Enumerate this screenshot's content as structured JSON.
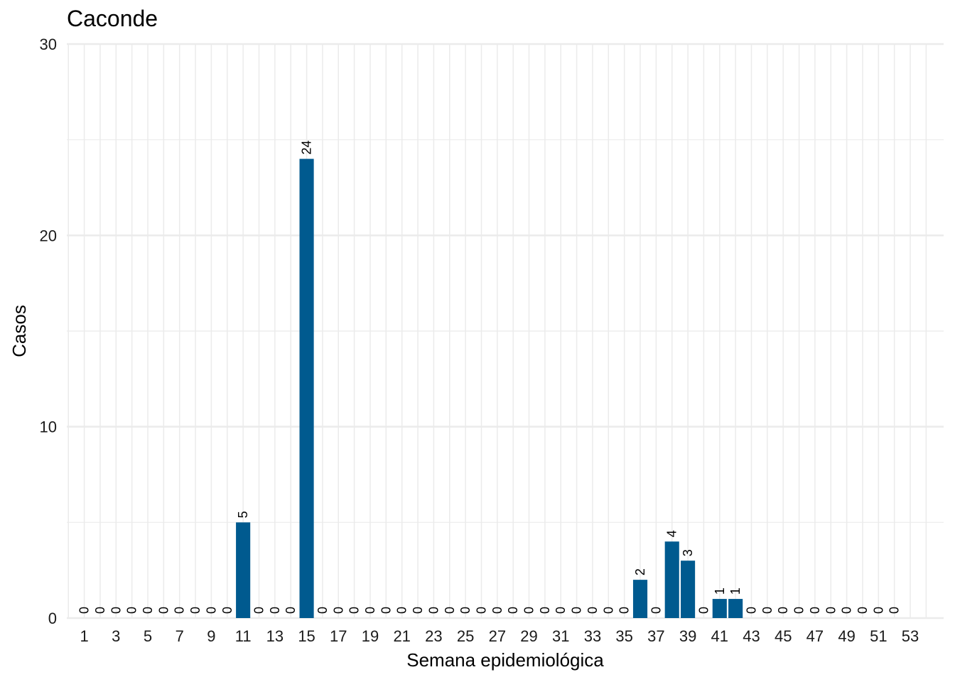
{
  "chart_data": {
    "type": "bar",
    "title": "Caconde",
    "xlabel": "Semana epidemiológica",
    "ylabel": "Casos",
    "ylim": [
      0,
      30
    ],
    "y_ticks": [
      0,
      10,
      20,
      30
    ],
    "x_tick_labels": [
      1,
      3,
      5,
      7,
      9,
      11,
      13,
      15,
      17,
      19,
      21,
      23,
      25,
      27,
      29,
      31,
      33,
      35,
      37,
      39,
      41,
      43,
      45,
      47,
      49,
      51,
      53
    ],
    "bar_color": "#005A8F",
    "grid": true,
    "legend": "none",
    "categories": [
      1,
      2,
      3,
      4,
      5,
      6,
      7,
      8,
      9,
      10,
      11,
      12,
      13,
      14,
      15,
      16,
      17,
      18,
      19,
      20,
      21,
      22,
      23,
      24,
      25,
      26,
      27,
      28,
      29,
      30,
      31,
      32,
      33,
      34,
      35,
      36,
      37,
      38,
      39,
      40,
      41,
      42,
      43,
      44,
      45,
      46,
      47,
      48,
      49,
      50,
      51,
      52
    ],
    "values": [
      0,
      0,
      0,
      0,
      0,
      0,
      0,
      0,
      0,
      0,
      5,
      0,
      0,
      0,
      24,
      0,
      0,
      0,
      0,
      0,
      0,
      0,
      0,
      0,
      0,
      0,
      0,
      0,
      0,
      0,
      0,
      0,
      0,
      0,
      0,
      2,
      0,
      4,
      3,
      0,
      1,
      1,
      0,
      0,
      0,
      0,
      0,
      0,
      0,
      0,
      0,
      0
    ]
  }
}
